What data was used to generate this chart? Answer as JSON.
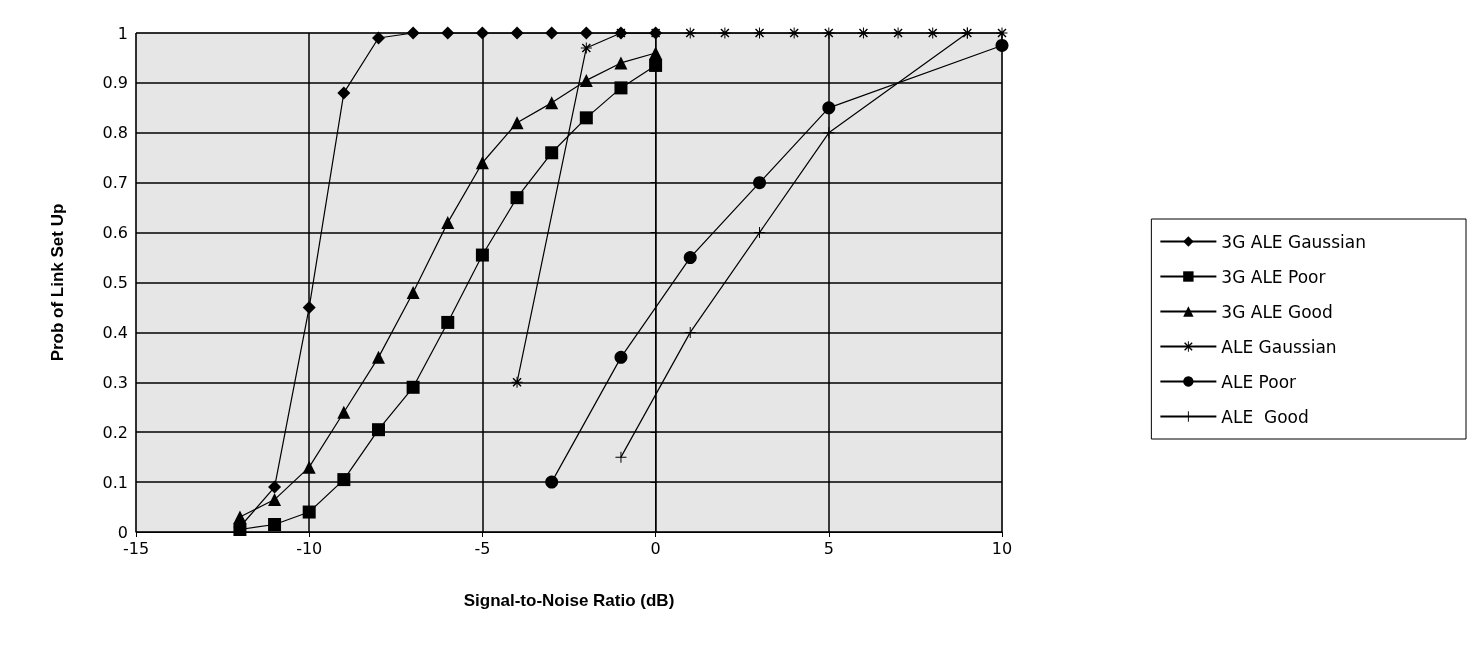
{
  "chart_data": {
    "type": "line",
    "xlabel": "Signal-to-Noise Ratio (dB)",
    "ylabel": "Prob of Link Set Up",
    "xlim": [
      -15,
      10
    ],
    "xticks": [
      -15,
      -10,
      -5,
      0,
      5,
      10
    ],
    "ylim": [
      0,
      1
    ],
    "yticks": [
      0,
      0.1,
      0.2,
      0.3,
      0.4,
      0.5,
      0.6,
      0.7,
      0.8,
      0.9,
      1
    ],
    "grid": true,
    "legend": "right",
    "line_style": "solid",
    "series": [
      {
        "name": "3G ALE Gaussian",
        "color": "#000000",
        "marker": "diamond",
        "x": [
          -12,
          -11,
          -10,
          -9,
          -8,
          -7,
          -6,
          -5,
          -4,
          -3,
          -2,
          -1,
          0
        ],
        "values": [
          0.01,
          0.09,
          0.45,
          0.88,
          0.99,
          1,
          1,
          1,
          1,
          1,
          1,
          1,
          1
        ]
      },
      {
        "name": "3G ALE Poor",
        "color": "#000000",
        "marker": "square",
        "x": [
          -12,
          -11,
          -10,
          -9,
          -8,
          -7,
          -6,
          -5,
          -4,
          -3,
          -2,
          -1,
          0
        ],
        "values": [
          0.005,
          0.015,
          0.04,
          0.105,
          0.205,
          0.29,
          0.42,
          0.555,
          0.67,
          0.76,
          0.83,
          0.89,
          0.935
        ]
      },
      {
        "name": "3G ALE Good",
        "color": "#000000",
        "marker": "triangle",
        "x": [
          -12,
          -11,
          -10,
          -9,
          -8,
          -7,
          -6,
          -5,
          -4,
          -3,
          -2,
          -1,
          0
        ],
        "values": [
          0.03,
          0.065,
          0.13,
          0.24,
          0.35,
          0.48,
          0.62,
          0.74,
          0.82,
          0.86,
          0.905,
          0.94,
          0.96
        ]
      },
      {
        "name": "ALE Gaussian",
        "color": "#000000",
        "marker": "star",
        "x": [
          -4,
          -2,
          -1,
          0,
          1,
          2,
          3,
          4,
          5,
          6,
          7,
          8,
          9,
          10
        ],
        "values": [
          0.3,
          0.97,
          1,
          1,
          1,
          1,
          1,
          1,
          1,
          1,
          1,
          1,
          1,
          1
        ]
      },
      {
        "name": "ALE Poor",
        "color": "#000000",
        "marker": "circle",
        "x": [
          -3,
          -1,
          1,
          3,
          5,
          10
        ],
        "values": [
          0.1,
          0.35,
          0.55,
          0.7,
          0.85,
          0.975
        ]
      },
      {
        "name": "ALE  Good",
        "color": "#000000",
        "marker": "cross",
        "x": [
          -1,
          1,
          3,
          5,
          9
        ],
        "values": [
          0.15,
          0.4,
          0.6,
          0.8,
          1
        ]
      }
    ]
  }
}
